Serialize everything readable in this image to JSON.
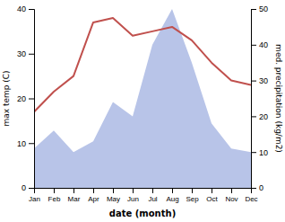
{
  "chart_data": {
    "type": "line",
    "categories": [
      "Jan",
      "Feb",
      "Mar",
      "Apr",
      "May",
      "Jun",
      "Jul",
      "Aug",
      "Sep",
      "Oct",
      "Nov",
      "Dec"
    ],
    "series": [
      {
        "type": "area",
        "color": "#b8c4e8",
        "axis": "y2",
        "values": [
          11,
          16,
          10,
          13,
          24,
          20,
          40,
          50,
          35,
          18,
          11,
          10
        ]
      },
      {
        "type": "line",
        "color": "#c0504d",
        "values": [
          17,
          21.5,
          25,
          37,
          38,
          34,
          35,
          36,
          33,
          28,
          24,
          23
        ]
      }
    ],
    "xlabel": "date (month)",
    "ylabel": "max temp (C)",
    "y2label": "med. precipitation (kg/m2)",
    "ylim": [
      0,
      40
    ],
    "yticks": [
      0,
      10,
      20,
      30,
      40
    ],
    "y2lim": [
      0,
      50
    ],
    "y2ticks": [
      0,
      10,
      20,
      30,
      40,
      50
    ]
  }
}
